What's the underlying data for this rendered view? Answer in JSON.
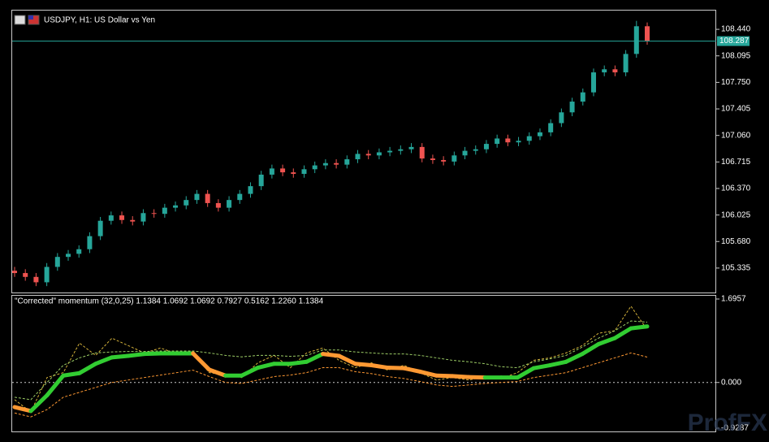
{
  "chart_data": [
    {
      "type": "candlestick",
      "title": "USDJPY, H1:  US Dollar vs Yen",
      "up_color": "#26a69a",
      "down_color": "#ef5350",
      "last_price": 108.287,
      "last_price_color": "#26a69a",
      "ylim": [
        105.017,
        108.684
      ],
      "yticks": [
        105.335,
        {
          "value": 105.68,
          "label": "105.680"
        },
        106.025,
        {
          "value": 106.37,
          "label": "106.370"
        },
        106.715,
        {
          "value": 107.06,
          "label": "107.060"
        },
        107.405,
        {
          "value": 107.75,
          "label": "107.750"
        },
        108.095,
        {
          "value": 108.44,
          "label": "108.440"
        }
      ],
      "open": [
        105.3,
        105.27,
        105.22,
        105.15,
        105.35,
        105.48,
        105.52,
        105.58,
        105.75,
        105.95,
        106.02,
        105.96,
        105.94,
        106.05,
        106.04,
        106.12,
        106.15,
        106.22,
        106.3,
        106.18,
        106.12,
        106.22,
        106.3,
        106.4,
        106.55,
        106.63,
        106.58,
        106.56,
        106.62,
        106.67,
        106.7,
        106.68,
        106.75,
        106.82,
        106.8,
        106.84,
        106.86,
        106.88,
        106.91,
        106.76,
        106.74,
        106.72,
        106.8,
        106.86,
        106.88,
        106.95,
        107.02,
        106.97,
        106.99,
        107.05,
        107.1,
        107.22,
        107.36,
        107.5,
        107.62,
        107.88,
        107.92,
        107.88,
        108.12,
        108.48
      ],
      "high": [
        105.35,
        105.32,
        105.27,
        105.4,
        105.53,
        105.57,
        105.63,
        105.8,
        106.0,
        106.07,
        106.07,
        106.01,
        106.1,
        106.1,
        106.17,
        106.2,
        106.27,
        106.35,
        106.35,
        106.23,
        106.27,
        106.35,
        106.45,
        106.6,
        106.68,
        106.68,
        106.63,
        106.67,
        106.72,
        106.75,
        106.75,
        106.8,
        106.87,
        106.87,
        106.89,
        106.91,
        106.93,
        106.96,
        106.96,
        106.81,
        106.79,
        106.85,
        106.91,
        106.93,
        107.0,
        107.07,
        107.07,
        107.04,
        107.1,
        107.15,
        107.27,
        107.41,
        107.55,
        107.67,
        107.93,
        107.97,
        107.97,
        108.17,
        108.55,
        108.53
      ],
      "low": [
        105.22,
        105.17,
        105.1,
        105.1,
        105.3,
        105.43,
        105.47,
        105.53,
        105.7,
        105.9,
        105.91,
        105.89,
        105.89,
        105.99,
        105.99,
        106.07,
        106.1,
        106.17,
        106.13,
        106.07,
        106.07,
        106.17,
        106.25,
        106.35,
        106.5,
        106.53,
        106.51,
        106.51,
        106.57,
        106.62,
        106.63,
        106.63,
        106.7,
        106.75,
        106.75,
        106.79,
        106.81,
        106.83,
        106.71,
        106.69,
        106.67,
        106.67,
        106.75,
        106.81,
        106.83,
        106.9,
        106.92,
        106.92,
        106.94,
        107.0,
        107.05,
        107.17,
        107.31,
        107.45,
        107.57,
        107.83,
        107.83,
        107.83,
        108.07,
        108.24
      ],
      "close": [
        105.27,
        105.22,
        105.15,
        105.35,
        105.48,
        105.52,
        105.58,
        105.75,
        105.95,
        106.02,
        105.96,
        105.94,
        106.05,
        106.04,
        106.12,
        106.15,
        106.22,
        106.3,
        106.18,
        106.12,
        106.22,
        106.3,
        106.4,
        106.55,
        106.63,
        106.58,
        106.56,
        106.62,
        106.67,
        106.7,
        106.68,
        106.75,
        106.82,
        106.8,
        106.84,
        106.86,
        106.88,
        106.91,
        106.76,
        106.74,
        106.72,
        106.8,
        106.86,
        106.88,
        106.95,
        107.02,
        106.97,
        106.99,
        107.05,
        107.1,
        107.22,
        107.36,
        107.5,
        107.62,
        107.88,
        107.92,
        107.88,
        108.12,
        108.48,
        108.29
      ]
    },
    {
      "type": "line",
      "title": "\"Corrected\" momentum (32,0,25) 1.1384 1.0692 1.0692 0.7927 0.5162 1.2260 1.1384",
      "ylim": [
        -0.9287,
        1.6957
      ],
      "yticks": [
        -0.9287,
        {
          "value": 0,
          "label": "0.000"
        },
        1.6957
      ],
      "series": [
        {
          "color": "#d4b13a",
          "style": "dashed",
          "values": [
            -0.35,
            -0.6,
            0.1,
            0.2,
            0.8,
            0.55,
            0.9,
            0.75,
            0.6,
            0.7,
            0.58,
            0.6,
            0.2,
            0.15,
            0.1,
            0.4,
            0.55,
            0.3,
            0.6,
            0.7,
            0.45,
            0.3,
            0.4,
            0.25,
            0.35,
            0.2,
            0.05,
            0.1,
            0.05,
            0.12,
            0.08,
            0.2,
            0.45,
            0.5,
            0.6,
            0.75,
            1.0,
            1.05,
            1.55,
            1.0692
          ]
        },
        {
          "color": "#9ccc65",
          "style": "dashed",
          "values": [
            -0.3,
            -0.35,
            0.0,
            0.35,
            0.5,
            0.6,
            0.62,
            0.63,
            0.63,
            0.64,
            0.64,
            0.64,
            0.6,
            0.55,
            0.52,
            0.55,
            0.55,
            0.53,
            0.55,
            0.66,
            0.66,
            0.62,
            0.6,
            0.58,
            0.58,
            0.55,
            0.5,
            0.45,
            0.42,
            0.38,
            0.32,
            0.3,
            0.42,
            0.48,
            0.55,
            0.72,
            0.9,
            1.05,
            1.25,
            1.226
          ]
        },
        {
          "color": "#ff9933",
          "style": "dashed",
          "values": [
            -0.62,
            -0.7,
            -0.55,
            -0.3,
            -0.2,
            -0.1,
            0.0,
            0.05,
            0.1,
            0.15,
            0.2,
            0.25,
            0.12,
            0.0,
            -0.02,
            0.05,
            0.12,
            0.15,
            0.2,
            0.3,
            0.3,
            0.22,
            0.18,
            0.12,
            0.08,
            0.02,
            -0.05,
            -0.08,
            -0.05,
            -0.02,
            0.0,
            0.02,
            0.1,
            0.15,
            0.2,
            0.3,
            0.4,
            0.5,
            0.6,
            0.5162
          ]
        },
        {
          "color": "#32cd32",
          "down_color": "#ff9933",
          "style": "thick",
          "values": [
            -0.5,
            -0.58,
            -0.26,
            0.14,
            0.19,
            0.38,
            0.51,
            0.54,
            0.58,
            0.59,
            0.59,
            0.59,
            0.26,
            0.14,
            0.14,
            0.3,
            0.38,
            0.38,
            0.42,
            0.58,
            0.54,
            0.38,
            0.35,
            0.3,
            0.29,
            0.22,
            0.14,
            0.13,
            0.11,
            0.1,
            0.1,
            0.1,
            0.29,
            0.35,
            0.42,
            0.58,
            0.78,
            0.9,
            1.1,
            1.1384
          ]
        }
      ]
    }
  ],
  "watermark": "ProfFX"
}
